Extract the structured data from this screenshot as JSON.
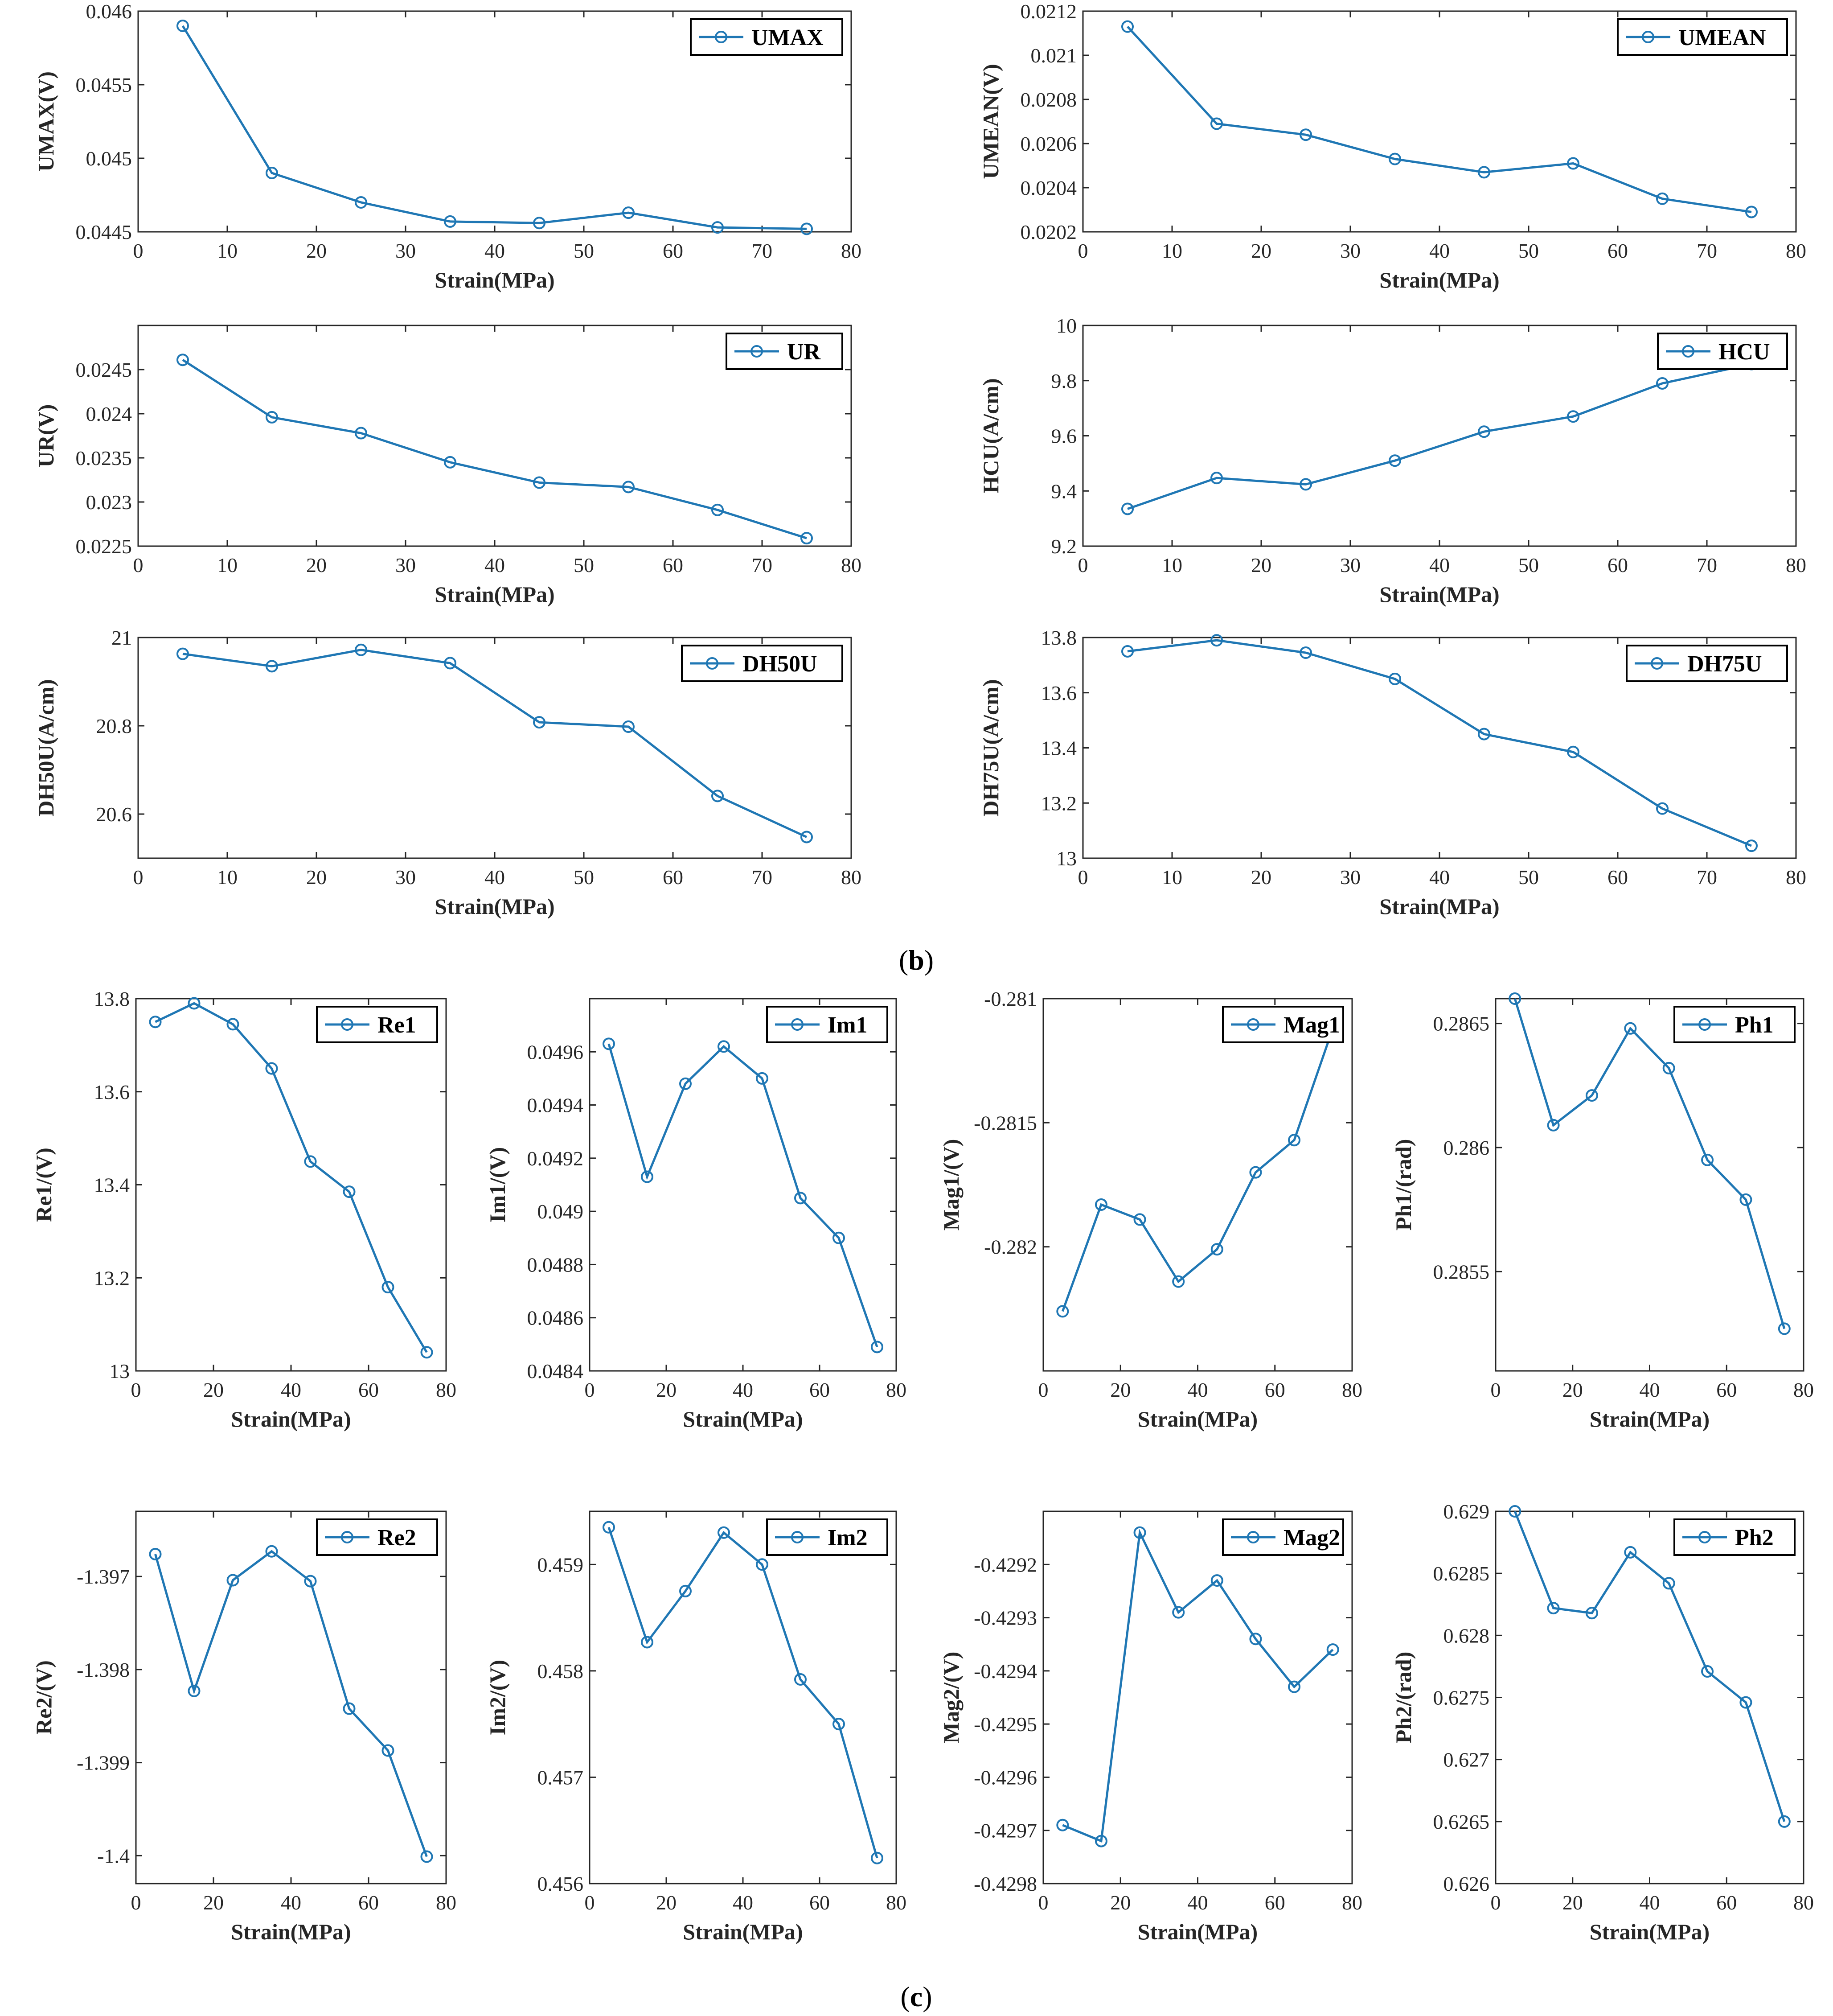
{
  "figure_labels": {
    "b": "b",
    "c": "c"
  },
  "colors": {
    "series": "#1f77b4",
    "axis": "#262626"
  },
  "chart_data": [
    {
      "id": "UMAX",
      "type": "line",
      "legend": "UMAX",
      "ylabel": "UMAX(V)",
      "xlabel": "Strain(MPa)",
      "x": [
        5,
        15,
        25,
        35,
        45,
        55,
        65,
        75
      ],
      "values": [
        0.0459,
        0.0449,
        0.0447,
        0.04457,
        0.04456,
        0.04463,
        0.04453,
        0.04452
      ],
      "xlim": [
        0,
        80
      ],
      "xticks": [
        0,
        10,
        20,
        30,
        40,
        50,
        60,
        70,
        80
      ],
      "ylim": [
        0.0445,
        0.046
      ],
      "yticks": [
        0.0445,
        0.045,
        0.0455,
        0.046
      ],
      "ytick_labels": [
        "0.0445",
        "0.045",
        "0.0455",
        "0.046"
      ]
    },
    {
      "id": "UMEAN",
      "type": "line",
      "legend": "UMEAN",
      "ylabel": "UMEAN(V)",
      "xlabel": "Strain(MPa)",
      "x": [
        5,
        15,
        25,
        35,
        45,
        55,
        65,
        75
      ],
      "values": [
        0.02113,
        0.02069,
        0.02064,
        0.02053,
        0.02047,
        0.02051,
        0.02035,
        0.02029
      ],
      "xlim": [
        0,
        80
      ],
      "xticks": [
        0,
        10,
        20,
        30,
        40,
        50,
        60,
        70,
        80
      ],
      "ylim": [
        0.0202,
        0.0212
      ],
      "yticks": [
        0.0202,
        0.0204,
        0.0206,
        0.0208,
        0.021,
        0.0212
      ],
      "ytick_labels": [
        "0.0202",
        "0.0204",
        "0.0206",
        "0.0208",
        "0.021",
        "0.0212"
      ]
    },
    {
      "id": "UR",
      "type": "line",
      "legend": "UR",
      "ylabel": "UR(V)",
      "xlabel": "Strain(MPa)",
      "x": [
        5,
        15,
        25,
        35,
        45,
        55,
        65,
        75
      ],
      "values": [
        0.02461,
        0.02396,
        0.02378,
        0.02345,
        0.02322,
        0.02317,
        0.02291,
        0.02259
      ],
      "xlim": [
        0,
        80
      ],
      "xticks": [
        0,
        10,
        20,
        30,
        40,
        50,
        60,
        70,
        80
      ],
      "ylim": [
        0.0225,
        0.025
      ],
      "yticks": [
        0.0225,
        0.023,
        0.0235,
        0.024,
        0.0245
      ],
      "ytick_labels": [
        "0.0225",
        "0.023",
        "0.0235",
        "0.024",
        "0.0245"
      ]
    },
    {
      "id": "HCU",
      "type": "line",
      "legend": "HCU",
      "ylabel": "HCU(A/cm)",
      "xlabel": "Strain(MPa)",
      "x": [
        5,
        15,
        25,
        35,
        45,
        55,
        65,
        75
      ],
      "values": [
        9.335,
        9.447,
        9.424,
        9.51,
        9.615,
        9.67,
        9.79,
        9.86
      ],
      "xlim": [
        0,
        80
      ],
      "xticks": [
        0,
        10,
        20,
        30,
        40,
        50,
        60,
        70,
        80
      ],
      "ylim": [
        9.2,
        10
      ],
      "yticks": [
        9.2,
        9.4,
        9.6,
        9.8,
        10
      ],
      "ytick_labels": [
        "9.2",
        "9.4",
        "9.6",
        "9.8",
        "10"
      ]
    },
    {
      "id": "DH50U",
      "type": "line",
      "legend": "DH50U",
      "ylabel": "DH50U(A/cm)",
      "xlabel": "Strain(MPa)",
      "x": [
        5,
        15,
        25,
        35,
        45,
        55,
        65,
        75
      ],
      "values": [
        20.963,
        20.935,
        20.972,
        20.942,
        20.808,
        20.798,
        20.641,
        20.548
      ],
      "xlim": [
        0,
        80
      ],
      "xticks": [
        0,
        10,
        20,
        30,
        40,
        50,
        60,
        70,
        80
      ],
      "ylim": [
        20.5,
        21
      ],
      "yticks": [
        20.6,
        20.8,
        21
      ],
      "ytick_labels": [
        "20.6",
        "20.8",
        "21"
      ]
    },
    {
      "id": "DH75U",
      "type": "line",
      "legend": "DH75U",
      "ylabel": "DH75U(A/cm)",
      "xlabel": "Strain(MPa)",
      "x": [
        5,
        15,
        25,
        35,
        45,
        55,
        65,
        75
      ],
      "values": [
        13.75,
        13.79,
        13.745,
        13.65,
        13.45,
        13.385,
        13.18,
        13.045
      ],
      "xlim": [
        0,
        80
      ],
      "xticks": [
        0,
        10,
        20,
        30,
        40,
        50,
        60,
        70,
        80
      ],
      "ylim": [
        13,
        13.8
      ],
      "yticks": [
        13,
        13.2,
        13.4,
        13.6,
        13.8
      ],
      "ytick_labels": [
        "13",
        "13.2",
        "13.4",
        "13.6",
        "13.8"
      ]
    },
    {
      "id": "Re1",
      "type": "line",
      "legend": "Re1",
      "ylabel": "Re1/(V)",
      "xlabel": "Strain(MPa)",
      "x": [
        5,
        15,
        25,
        35,
        45,
        55,
        65,
        75
      ],
      "values": [
        13.75,
        13.79,
        13.745,
        13.65,
        13.45,
        13.385,
        13.18,
        13.04
      ],
      "xlim": [
        0,
        80
      ],
      "xticks": [
        0,
        20,
        40,
        60,
        80
      ],
      "ylim": [
        13,
        13.8
      ],
      "yticks": [
        13,
        13.2,
        13.4,
        13.6,
        13.8
      ],
      "ytick_labels": [
        "13",
        "13.2",
        "13.4",
        "13.6",
        "13.8"
      ]
    },
    {
      "id": "Im1",
      "type": "line",
      "legend": "Im1",
      "ylabel": "Im1/(V)",
      "xlabel": "Strain(MPa)",
      "x": [
        5,
        15,
        25,
        35,
        45,
        55,
        65,
        75
      ],
      "values": [
        0.04963,
        0.04913,
        0.04948,
        0.04962,
        0.0495,
        0.04905,
        0.0489,
        0.04849
      ],
      "xlim": [
        0,
        80
      ],
      "xticks": [
        0,
        20,
        40,
        60,
        80
      ],
      "ylim": [
        0.0484,
        0.0498
      ],
      "yticks": [
        0.0484,
        0.0486,
        0.0488,
        0.049,
        0.0492,
        0.0494,
        0.0496
      ],
      "ytick_labels": [
        "0.0484",
        "0.0486",
        "0.0488",
        "0.049",
        "0.0492",
        "0.0494",
        "0.0496"
      ]
    },
    {
      "id": "Mag1",
      "type": "line",
      "legend": "Mag1",
      "ylabel": "Mag1/(V)",
      "xlabel": "Strain(MPa)",
      "x": [
        5,
        15,
        25,
        35,
        45,
        55,
        65,
        75
      ],
      "values": [
        -0.28226,
        -0.28183,
        -0.28189,
        -0.28214,
        -0.28201,
        -0.2817,
        -0.28157,
        -0.28112
      ],
      "xlim": [
        0,
        80
      ],
      "xticks": [
        0,
        20,
        40,
        60,
        80
      ],
      "ylim": [
        -0.2825,
        -0.281
      ],
      "yticks": [
        -0.282,
        -0.2815,
        -0.281
      ],
      "ytick_labels": [
        "-0.282",
        "-0.2815",
        "-0.281"
      ]
    },
    {
      "id": "Ph1",
      "type": "line",
      "legend": "Ph1",
      "ylabel": "Ph1/(rad)",
      "xlabel": "Strain(MPa)",
      "x": [
        5,
        15,
        25,
        35,
        45,
        55,
        65,
        75
      ],
      "values": [
        0.2866,
        0.28609,
        0.28621,
        0.28648,
        0.28632,
        0.28595,
        0.28579,
        0.28527
      ],
      "xlim": [
        0,
        80
      ],
      "xticks": [
        0,
        20,
        40,
        60,
        80
      ],
      "ylim": [
        0.2851,
        0.2866
      ],
      "yticks": [
        0.2855,
        0.286,
        0.2865
      ],
      "ytick_labels": [
        "0.2855",
        "0.286",
        "0.2865"
      ]
    },
    {
      "id": "Re2",
      "type": "line",
      "legend": "Re2",
      "ylabel": "Re2/(V)",
      "xlabel": "Strain(MPa)",
      "x": [
        5,
        15,
        25,
        35,
        45,
        55,
        65,
        75
      ],
      "values": [
        -1.39676,
        -1.39823,
        -1.39704,
        -1.39673,
        -1.39705,
        -1.39842,
        -1.39887,
        -1.40001
      ],
      "xlim": [
        0,
        80
      ],
      "xticks": [
        0,
        20,
        40,
        60,
        80
      ],
      "ylim": [
        -1.4003,
        -1.3963
      ],
      "yticks": [
        -1.4,
        -1.399,
        -1.398,
        -1.397
      ],
      "ytick_labels": [
        "-1.4",
        "-1.399",
        "-1.398",
        "-1.397"
      ]
    },
    {
      "id": "Im2",
      "type": "line",
      "legend": "Im2",
      "ylabel": "Im2/(V)",
      "xlabel": "Strain(MPa)",
      "x": [
        5,
        15,
        25,
        35,
        45,
        55,
        65,
        75
      ],
      "values": [
        0.45935,
        0.45827,
        0.45875,
        0.4593,
        0.459,
        0.45792,
        0.4575,
        0.45624
      ],
      "xlim": [
        0,
        80
      ],
      "xticks": [
        0,
        20,
        40,
        60,
        80
      ],
      "ylim": [
        0.456,
        0.4595
      ],
      "yticks": [
        0.456,
        0.457,
        0.458,
        0.459
      ],
      "ytick_labels": [
        "0.456",
        "0.457",
        "0.458",
        "0.459"
      ]
    },
    {
      "id": "Mag2",
      "type": "line",
      "legend": "Mag2",
      "ylabel": "Mag2/(V)",
      "xlabel": "Strain(MPa)",
      "x": [
        5,
        15,
        25,
        35,
        45,
        55,
        65,
        75
      ],
      "values": [
        -0.42969,
        -0.42972,
        -0.42914,
        -0.42929,
        -0.42923,
        -0.42934,
        -0.42943,
        -0.42936
      ],
      "xlim": [
        0,
        80
      ],
      "xticks": [
        0,
        20,
        40,
        60,
        80
      ],
      "ylim": [
        -0.4298,
        -0.4291
      ],
      "yticks": [
        -0.4298,
        -0.4297,
        -0.4296,
        -0.4295,
        -0.4294,
        -0.4293,
        -0.4292
      ],
      "ytick_labels": [
        "-0.4298",
        "-0.4297",
        "-0.4296",
        "-0.4295",
        "-0.4294",
        "-0.4293",
        "-0.4292"
      ]
    },
    {
      "id": "Ph2",
      "type": "line",
      "legend": "Ph2",
      "ylabel": "Ph2/(rad)",
      "xlabel": "Strain(MPa)",
      "x": [
        5,
        15,
        25,
        35,
        45,
        55,
        65,
        75
      ],
      "values": [
        0.629,
        0.62822,
        0.62818,
        0.62867,
        0.62842,
        0.62771,
        0.62746,
        0.6265
      ],
      "xlim": [
        0,
        80
      ],
      "xticks": [
        0,
        20,
        40,
        60,
        80
      ],
      "ylim": [
        0.626,
        0.629
      ],
      "yticks": [
        0.626,
        0.6265,
        0.627,
        0.6275,
        0.628,
        0.6285,
        0.629
      ],
      "ytick_labels": [
        "0.626",
        "0.6265",
        "0.627",
        "0.6275",
        "0.628",
        "0.6285",
        "0.629"
      ]
    }
  ]
}
